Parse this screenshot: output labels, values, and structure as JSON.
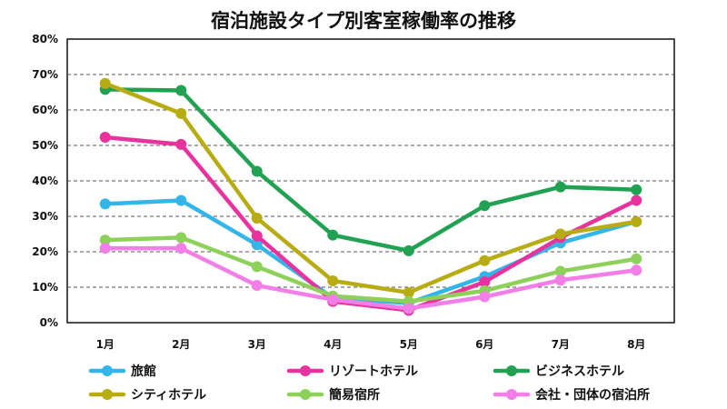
{
  "chart_data": {
    "type": "line",
    "title": "宿泊施設タイプ別客室稼働率の推移",
    "xlabel": "",
    "ylabel": "",
    "categories": [
      "1月",
      "2月",
      "3月",
      "4月",
      "5月",
      "6月",
      "7月",
      "8月"
    ],
    "ylim": [
      0,
      80
    ],
    "yticks": [
      0,
      10,
      20,
      30,
      40,
      50,
      60,
      70,
      80
    ],
    "ytick_labels": [
      "0%",
      "10%",
      "20%",
      "30%",
      "40%",
      "50%",
      "60%",
      "70%",
      "80%"
    ],
    "grid": "horizontal dashed",
    "legend_position": "bottom",
    "series": [
      {
        "name": "旅館",
        "color": "#33b5ea",
        "values": [
          33.5,
          34.5,
          22.0,
          7.0,
          5.5,
          13.0,
          22.5,
          28.5
        ]
      },
      {
        "name": "リゾートホテル",
        "color": "#e8329e",
        "values": [
          52.3,
          50.3,
          24.5,
          6.0,
          3.5,
          11.5,
          24.0,
          34.5
        ]
      },
      {
        "name": "ビジネスホテル",
        "color": "#21a152",
        "values": [
          65.8,
          65.5,
          42.7,
          24.7,
          20.3,
          33.0,
          38.3,
          37.5
        ]
      },
      {
        "name": "シティホテル",
        "color": "#b8ac14",
        "values": [
          67.5,
          59.0,
          29.5,
          11.8,
          8.5,
          17.5,
          25.0,
          28.5
        ]
      },
      {
        "name": "簡易宿所",
        "color": "#8dd05a",
        "values": [
          23.3,
          24.0,
          15.8,
          7.5,
          6.0,
          9.0,
          14.5,
          18.0
        ]
      },
      {
        "name": "会社・団体の宿泊所",
        "color": "#f27ee8",
        "values": [
          21.0,
          21.0,
          10.5,
          6.5,
          4.0,
          7.3,
          12.0,
          14.8
        ]
      }
    ]
  }
}
